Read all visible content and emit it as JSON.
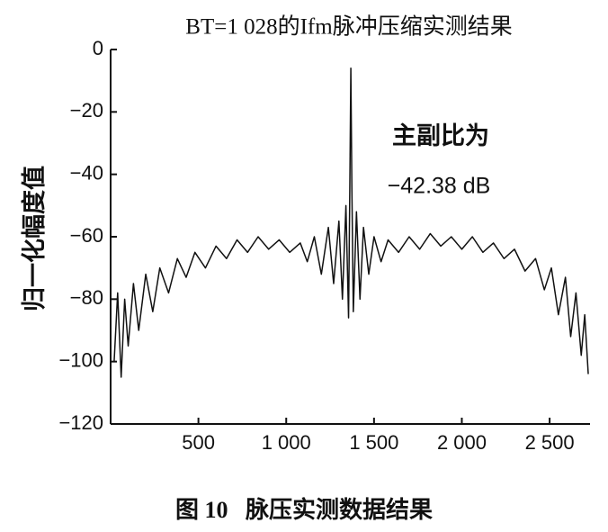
{
  "chart_data": {
    "type": "line",
    "title": "BT=1 028的Ifm脉冲压缩实测结果",
    "y_label": "归一化幅度值",
    "caption": "图 10   脉压实测数据结果",
    "annotations": [
      "主副比为",
      "−42.38 dB"
    ],
    "xlim": [
      0,
      2730
    ],
    "ylim": [
      -120,
      0
    ],
    "xticks": [
      500,
      {
        "value": 1000,
        "label": "1 000"
      },
      {
        "value": 1500,
        "label": "1 500"
      },
      {
        "value": 2000,
        "label": "2 000"
      },
      {
        "value": 2500,
        "label": "2 500"
      }
    ],
    "yticks": [
      {
        "value": 0,
        "label": "0"
      },
      {
        "value": -20,
        "label": "−20"
      },
      {
        "value": -40,
        "label": "−40"
      },
      {
        "value": -60,
        "label": "−60"
      },
      {
        "value": -80,
        "label": "−80"
      },
      {
        "value": -100,
        "label": "−100"
      },
      {
        "value": -120,
        "label": "−120"
      }
    ],
    "x": [
      20,
      40,
      60,
      80,
      100,
      130,
      160,
      200,
      240,
      280,
      330,
      380,
      430,
      480,
      540,
      600,
      660,
      720,
      780,
      840,
      900,
      960,
      1020,
      1080,
      1120,
      1160,
      1200,
      1240,
      1270,
      1300,
      1320,
      1340,
      1355,
      1362,
      1368,
      1374,
      1382,
      1400,
      1420,
      1440,
      1470,
      1500,
      1540,
      1580,
      1640,
      1700,
      1760,
      1820,
      1880,
      1940,
      2000,
      2060,
      2120,
      2180,
      2240,
      2300,
      2360,
      2420,
      2470,
      2510,
      2550,
      2590,
      2620,
      2650,
      2680,
      2700,
      2720
    ],
    "series": [
      {
        "color": "#111111",
        "values": [
          -100,
          -78,
          -105,
          -80,
          -95,
          -75,
          -90,
          -72,
          -84,
          -70,
          -78,
          -67,
          -73,
          -65,
          -70,
          -63,
          -67,
          -61,
          -65,
          -60,
          -64,
          -61,
          -65,
          -62,
          -68,
          -60,
          -72,
          -57,
          -75,
          -55,
          -80,
          -50,
          -86,
          -45,
          -6,
          -45,
          -84,
          -52,
          -80,
          -57,
          -72,
          -60,
          -68,
          -61,
          -65,
          -60,
          -64,
          -59,
          -63,
          -60,
          -64,
          -60,
          -65,
          -62,
          -67,
          -64,
          -71,
          -67,
          -77,
          -70,
          -85,
          -73,
          -92,
          -78,
          -98,
          -85,
          -104
        ]
      }
    ]
  }
}
